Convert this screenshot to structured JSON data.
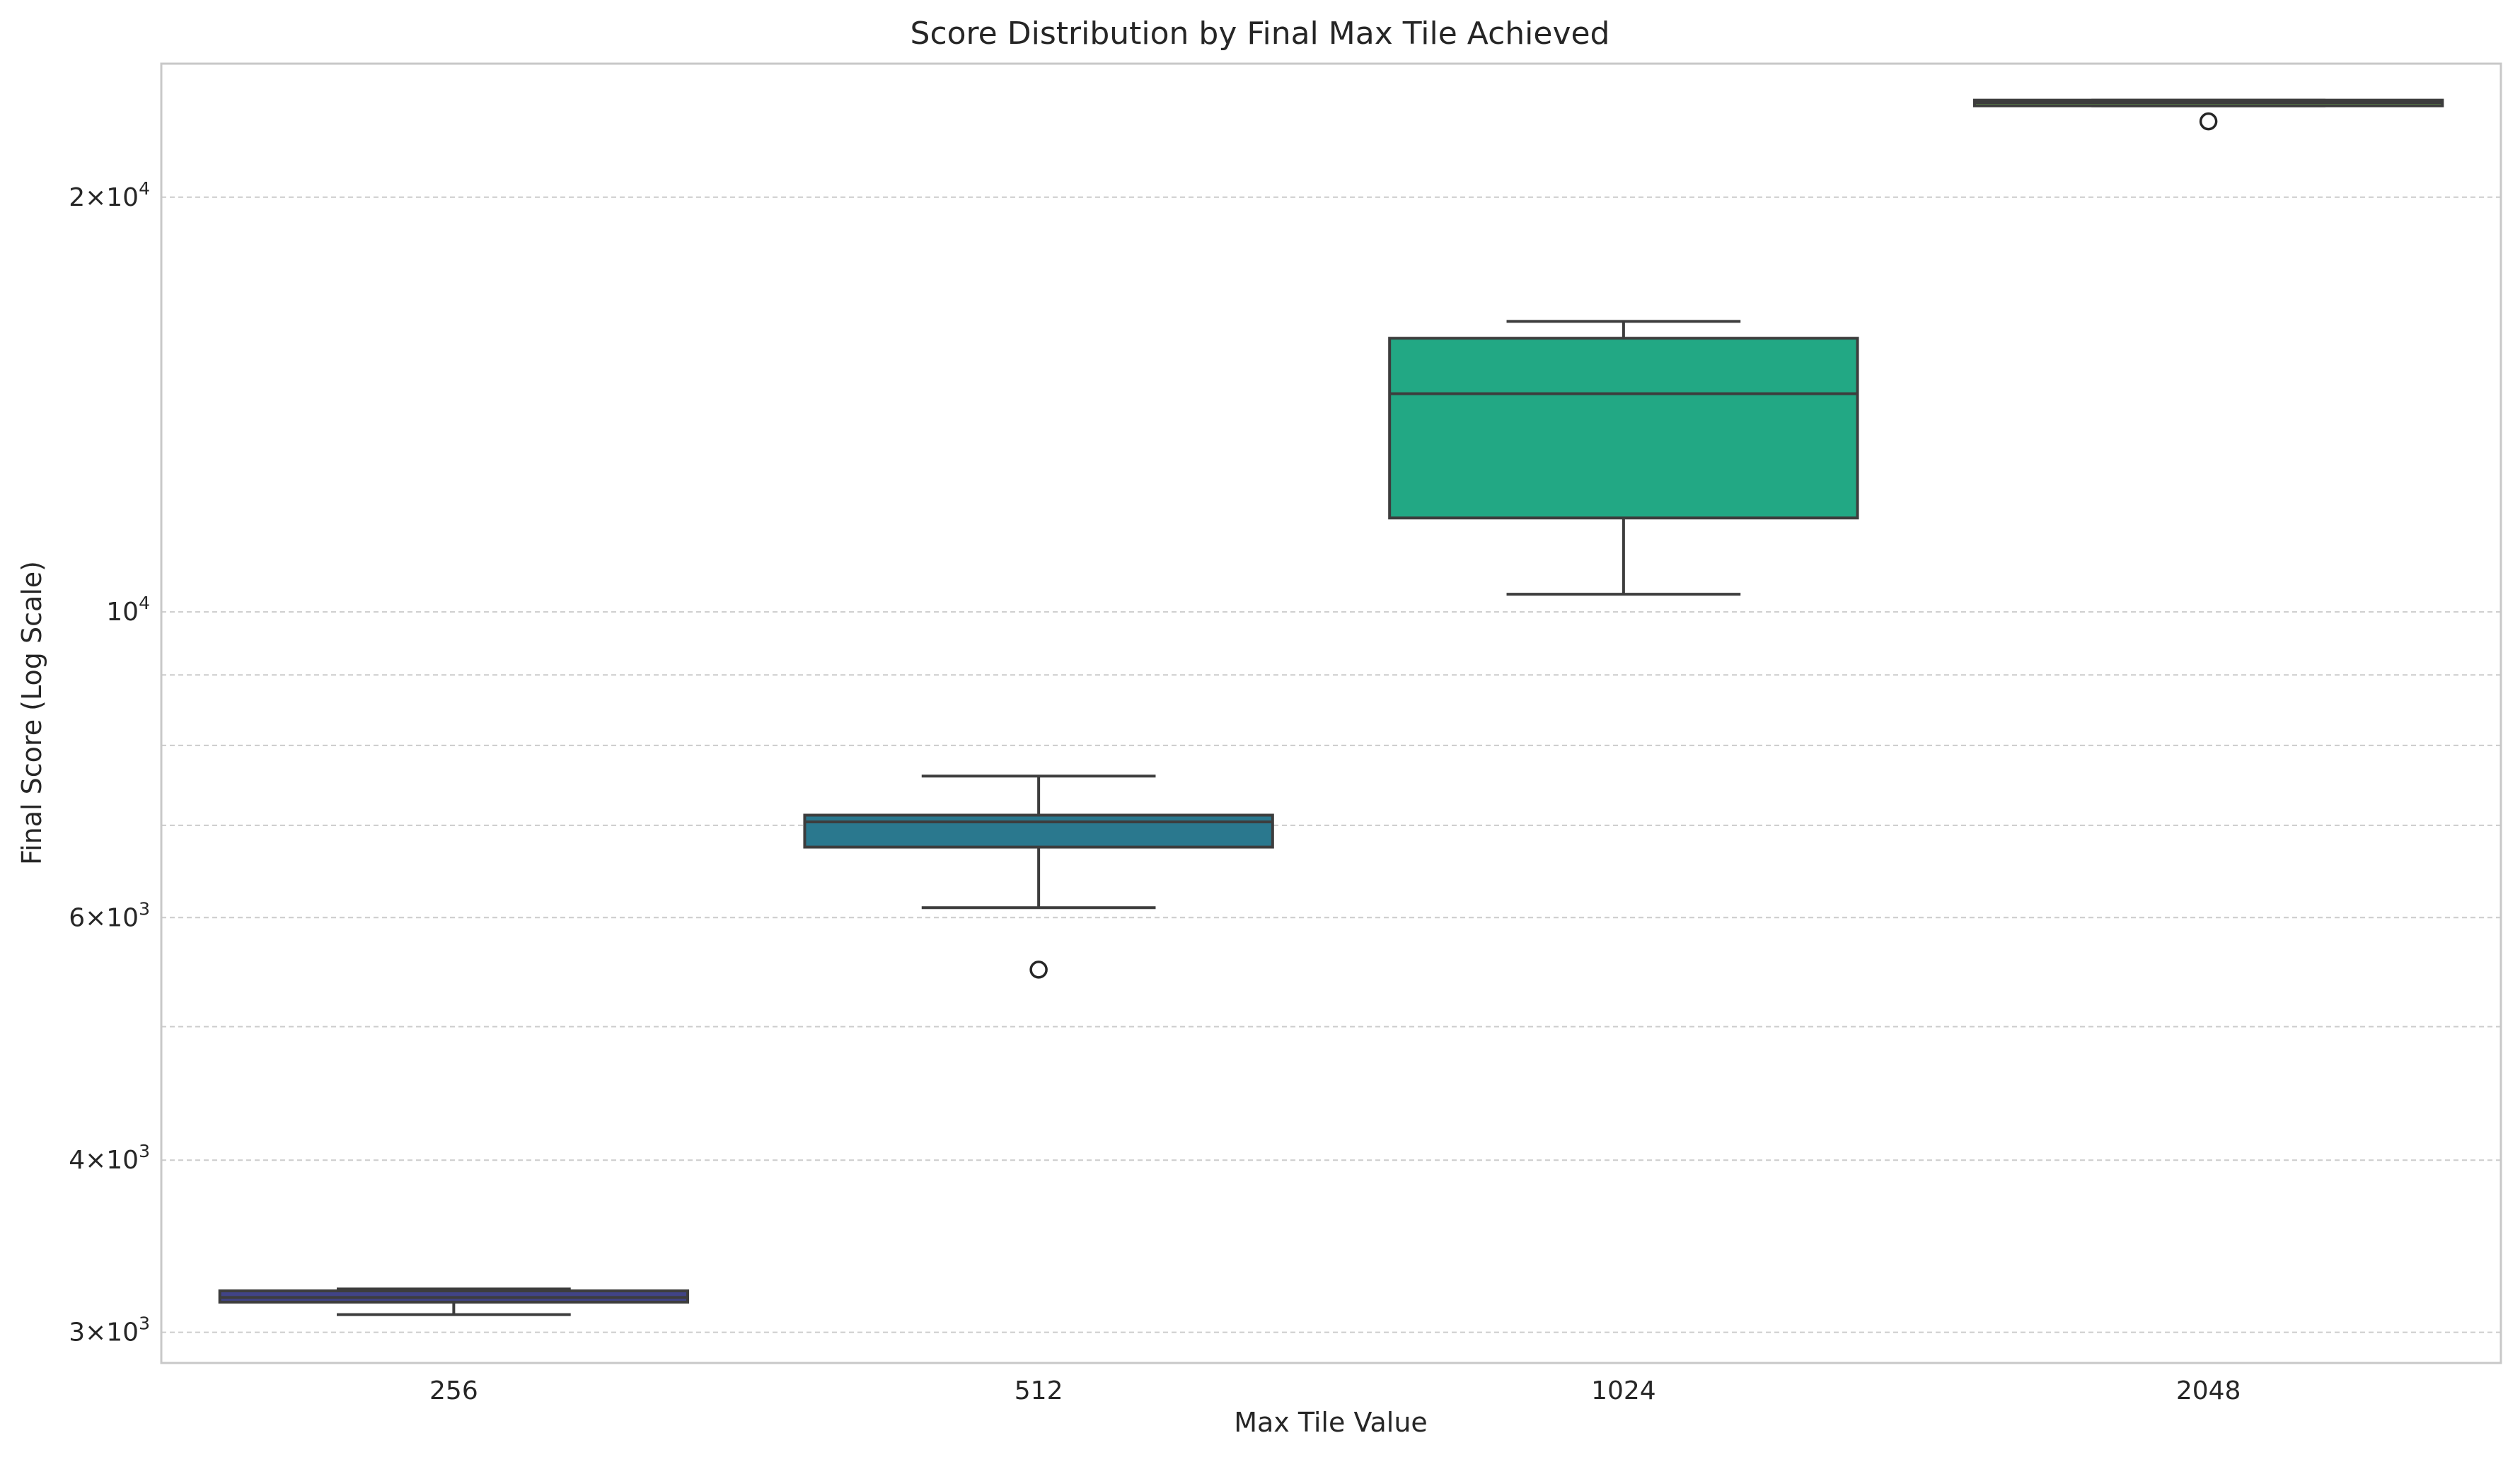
{
  "chart_data": {
    "type": "box",
    "title": "Score Distribution by Final Max Tile Achieved",
    "xlabel": "Max Tile Value",
    "ylabel": "Final Score (Log Scale)",
    "y_scale": "log",
    "ylim": [
      2850,
      25000
    ],
    "grid": {
      "y_major": true,
      "y_minor": true,
      "x": false,
      "style": "dashed"
    },
    "y_major_ticks": [
      {
        "value": 3000,
        "mantissa": "3",
        "exponent": "3"
      },
      {
        "value": 4000,
        "mantissa": "4",
        "exponent": "3"
      },
      {
        "value": 6000,
        "mantissa": "6",
        "exponent": "3"
      },
      {
        "value": 10000,
        "mantissa": "",
        "exponent": "4"
      },
      {
        "value": 20000,
        "mantissa": "2",
        "exponent": "4"
      }
    ],
    "y_minor_gridlines": [
      5000,
      7000,
      8000,
      9000
    ],
    "categories": [
      "256",
      "512",
      "1024",
      "2048"
    ],
    "boxes": [
      {
        "category": "256",
        "whisker_low": 3090,
        "q1": 3155,
        "median": 3180,
        "q3": 3215,
        "whisker_high": 3225,
        "outliers": [],
        "color": "#414487"
      },
      {
        "category": "512",
        "whisker_low": 6100,
        "q1": 6750,
        "median": 7040,
        "q3": 7120,
        "whisker_high": 7600,
        "outliers": [
          5500
        ],
        "color": "#2a788e"
      },
      {
        "category": "1024",
        "whisker_low": 10300,
        "q1": 11700,
        "median": 14400,
        "q3": 15800,
        "whisker_high": 16250,
        "outliers": [],
        "color": "#22a884"
      },
      {
        "category": "2048",
        "whisker_low": 23300,
        "q1": 23300,
        "median": 23420,
        "q3": 23520,
        "whisker_high": 23520,
        "outliers": [
          22700
        ],
        "color": "#7ad151"
      }
    ]
  }
}
